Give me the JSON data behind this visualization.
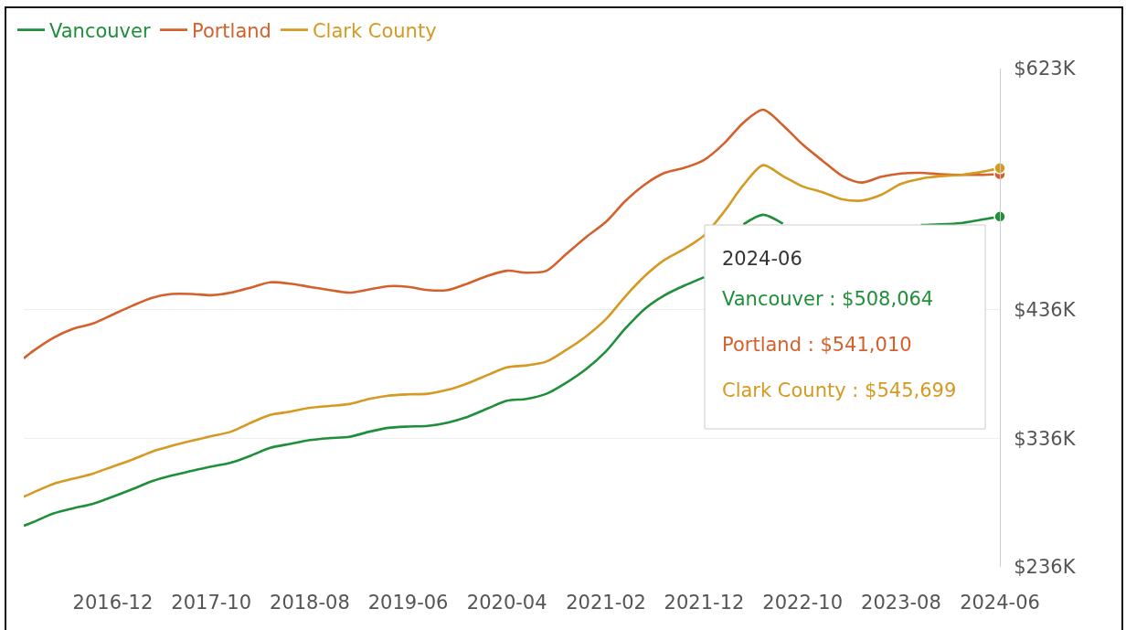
{
  "chart_data": {
    "type": "line",
    "x": [
      "2016-03",
      "2016-04",
      "2016-06",
      "2016-08",
      "2016-10",
      "2016-12",
      "2017-02",
      "2017-04",
      "2017-06",
      "2017-08",
      "2017-10",
      "2017-12",
      "2018-02",
      "2018-04",
      "2018-06",
      "2018-08",
      "2018-10",
      "2018-12",
      "2019-02",
      "2019-04",
      "2019-06",
      "2019-08",
      "2019-10",
      "2019-12",
      "2020-02",
      "2020-04",
      "2020-06",
      "2020-08",
      "2020-10",
      "2020-12",
      "2021-02",
      "2021-04",
      "2021-06",
      "2021-08",
      "2021-10",
      "2021-12",
      "2022-02",
      "2022-04",
      "2022-06",
      "2022-08",
      "2022-10",
      "2022-12",
      "2023-02",
      "2023-04",
      "2023-06",
      "2023-08",
      "2023-10",
      "2023-12",
      "2024-02",
      "2024-04",
      "2024-06"
    ],
    "series": [
      {
        "name": "Vancouver",
        "color": "#1f8f3a",
        "values": [
          268000,
          271000,
          277500,
          281500,
          285000,
          290500,
          296500,
          302500,
          307000,
          310500,
          314000,
          317000,
          322500,
          328500,
          331500,
          334500,
          336000,
          337000,
          341000,
          344000,
          345000,
          345500,
          348000,
          352500,
          359000,
          365000,
          366500,
          370500,
          379000,
          389500,
          403500,
          421000,
          436500,
          447000,
          454500,
          461000,
          null,
          502000,
          509500,
          502500,
          null,
          null,
          null,
          null,
          null,
          null,
          501500,
          502000,
          503000,
          505500,
          508064
        ]
      },
      {
        "name": "Portland",
        "color": "#d4602c",
        "values": [
          398000,
          404000,
          414000,
          421000,
          425000,
          432000,
          439000,
          445000,
          448000,
          448000,
          447000,
          449000,
          453000,
          457000,
          456000,
          453500,
          451000,
          449000,
          451500,
          454000,
          453500,
          451000,
          451000,
          456000,
          462000,
          466000,
          464500,
          466000,
          479000,
          492000,
          504000,
          520000,
          533000,
          542000,
          546000,
          552000,
          565000,
          581000,
          591000,
          579000,
          564000,
          551500,
          539500,
          534500,
          539000,
          541500,
          542000,
          541000,
          540500,
          540500,
          541010
        ]
      },
      {
        "name": "Clark County",
        "color": "#d59a22",
        "values": [
          290500,
          294000,
          300500,
          304500,
          308500,
          314000,
          319500,
          325500,
          330000,
          334000,
          337500,
          341000,
          348000,
          354000,
          356500,
          359500,
          361000,
          362500,
          366500,
          369000,
          370000,
          370500,
          373500,
          378500,
          385000,
          391000,
          392500,
          395500,
          404500,
          415000,
          428500,
          446000,
          462000,
          474500,
          483000,
          493500,
          512000,
          532500,
          548000,
          539500,
          531500,
          527000,
          521500,
          520500,
          525000,
          533500,
          537500,
          539500,
          540500,
          542500,
          545699
        ]
      },
      {
        "type": "scatter",
        "marker": "circle",
        "x": [
          "2024-06",
          "2024-06",
          "2024-06"
        ],
        "values": [
          508064,
          541010,
          545699
        ],
        "colors": [
          "#1f8f3a",
          "#d4602c",
          "#d59a22"
        ]
      }
    ],
    "xlim": [
      "2016-03",
      "2024-06"
    ],
    "xticks": [
      "2016-12",
      "2017-10",
      "2018-08",
      "2019-06",
      "2020-04",
      "2021-02",
      "2021-12",
      "2022-10",
      "2023-08",
      "2024-06"
    ],
    "ylim": [
      236000,
      623000
    ],
    "yticks": [
      {
        "value": 236000,
        "label": "$236K"
      },
      {
        "value": 336000,
        "label": "$336K"
      },
      {
        "value": 436000,
        "label": "$436K"
      },
      {
        "value": 623000,
        "label": "$623K"
      }
    ],
    "annotations": [
      "2024-06",
      "Vancouver : $508,064",
      "Portland : $541,010",
      "Clark County : $545,699"
    ],
    "legend": "top left",
    "grid": "y",
    "marker": "none",
    "line_style": "solid"
  }
}
